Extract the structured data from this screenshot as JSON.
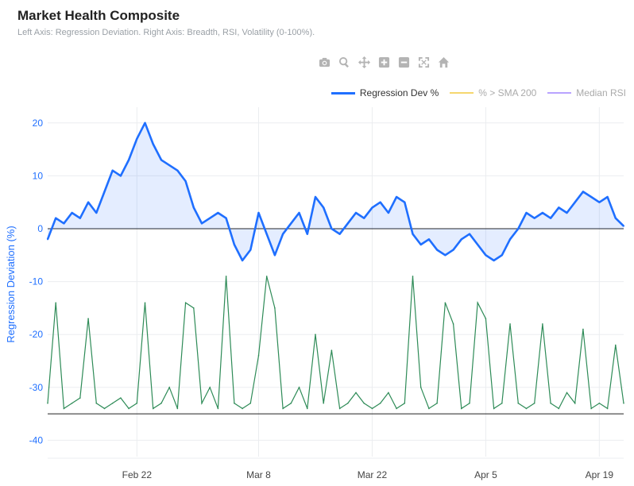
{
  "title": "Market Health Composite",
  "subtitle": "Left Axis: Regression Deviation. Right Axis: Breadth, RSI, Volatility (0-100%).",
  "modebar": {
    "icons": [
      "camera-icon",
      "zoom-icon",
      "pan-icon",
      "zoom-in-icon",
      "zoom-out-icon",
      "autoscale-icon",
      "reset-axes-icon"
    ]
  },
  "legend": [
    {
      "label": "Regression Dev %",
      "color": "#1f6fff",
      "active": true
    },
    {
      "label": "% > SMA 200",
      "color": "#f5d76e",
      "active": false
    },
    {
      "label": "Median RSI",
      "color": "#b9a3ff",
      "active": false
    }
  ],
  "chart_data": {
    "type": "line",
    "title": "Market Health Composite",
    "ylabel": "Regression Deviation (%)",
    "ylim": [
      -42,
      22
    ],
    "yticks": [
      -40,
      -30,
      -20,
      -10,
      0,
      10,
      20
    ],
    "xticks": [
      "Feb 22",
      "Mar 8",
      "Mar 22",
      "Apr 5",
      "Apr 19"
    ],
    "x_start": "2024-02-11",
    "x_end": "2024-04-22",
    "grid": true,
    "legend_position": "top-right",
    "series": [
      {
        "name": "Regression Dev %",
        "color": "#1f6fff",
        "fill": "rgba(31,111,255,0.12)",
        "points": [
          [
            "2024-02-11",
            -2
          ],
          [
            "2024-02-12",
            2
          ],
          [
            "2024-02-13",
            1
          ],
          [
            "2024-02-14",
            3
          ],
          [
            "2024-02-15",
            2
          ],
          [
            "2024-02-16",
            5
          ],
          [
            "2024-02-17",
            3
          ],
          [
            "2024-02-18",
            7
          ],
          [
            "2024-02-19",
            11
          ],
          [
            "2024-02-20",
            10
          ],
          [
            "2024-02-21",
            13
          ],
          [
            "2024-02-22",
            17
          ],
          [
            "2024-02-23",
            20
          ],
          [
            "2024-02-24",
            16
          ],
          [
            "2024-02-25",
            13
          ],
          [
            "2024-02-26",
            12
          ],
          [
            "2024-02-27",
            11
          ],
          [
            "2024-02-28",
            9
          ],
          [
            "2024-02-29",
            4
          ],
          [
            "2024-03-01",
            1
          ],
          [
            "2024-03-02",
            2
          ],
          [
            "2024-03-03",
            3
          ],
          [
            "2024-03-04",
            2
          ],
          [
            "2024-03-05",
            -3
          ],
          [
            "2024-03-06",
            -6
          ],
          [
            "2024-03-07",
            -4
          ],
          [
            "2024-03-08",
            3
          ],
          [
            "2024-03-09",
            -1
          ],
          [
            "2024-03-10",
            -5
          ],
          [
            "2024-03-11",
            -1
          ],
          [
            "2024-03-12",
            1
          ],
          [
            "2024-03-13",
            3
          ],
          [
            "2024-03-14",
            -1
          ],
          [
            "2024-03-15",
            6
          ],
          [
            "2024-03-16",
            4
          ],
          [
            "2024-03-17",
            0
          ],
          [
            "2024-03-18",
            -1
          ],
          [
            "2024-03-19",
            1
          ],
          [
            "2024-03-20",
            3
          ],
          [
            "2024-03-21",
            2
          ],
          [
            "2024-03-22",
            4
          ],
          [
            "2024-03-23",
            5
          ],
          [
            "2024-03-24",
            3
          ],
          [
            "2024-03-25",
            6
          ],
          [
            "2024-03-26",
            5
          ],
          [
            "2024-03-27",
            -1
          ],
          [
            "2024-03-28",
            -3
          ],
          [
            "2024-03-29",
            -2
          ],
          [
            "2024-03-30",
            -4
          ],
          [
            "2024-03-31",
            -5
          ],
          [
            "2024-04-01",
            -4
          ],
          [
            "2024-04-02",
            -2
          ],
          [
            "2024-04-03",
            -1
          ],
          [
            "2024-04-04",
            -3
          ],
          [
            "2024-04-05",
            -5
          ],
          [
            "2024-04-06",
            -6
          ],
          [
            "2024-04-07",
            -5
          ],
          [
            "2024-04-08",
            -2
          ],
          [
            "2024-04-09",
            0
          ],
          [
            "2024-04-10",
            3
          ],
          [
            "2024-04-11",
            2
          ],
          [
            "2024-04-12",
            3
          ],
          [
            "2024-04-13",
            2
          ],
          [
            "2024-04-14",
            4
          ],
          [
            "2024-04-15",
            3
          ],
          [
            "2024-04-16",
            5
          ],
          [
            "2024-04-17",
            7
          ],
          [
            "2024-04-18",
            6
          ],
          [
            "2024-04-19",
            5
          ],
          [
            "2024-04-20",
            6
          ],
          [
            "2024-04-21",
            2
          ],
          [
            "2024-04-22",
            0.5
          ]
        ]
      },
      {
        "name": "",
        "color": "#2e8b57",
        "baseline": -35,
        "points": [
          [
            "2024-02-11",
            -33
          ],
          [
            "2024-02-12",
            -14
          ],
          [
            "2024-02-13",
            -34
          ],
          [
            "2024-02-14",
            -33
          ],
          [
            "2024-02-15",
            -32
          ],
          [
            "2024-02-16",
            -17
          ],
          [
            "2024-02-17",
            -33
          ],
          [
            "2024-02-18",
            -34
          ],
          [
            "2024-02-19",
            -33
          ],
          [
            "2024-02-20",
            -32
          ],
          [
            "2024-02-21",
            -34
          ],
          [
            "2024-02-22",
            -33
          ],
          [
            "2024-02-23",
            -14
          ],
          [
            "2024-02-24",
            -34
          ],
          [
            "2024-02-25",
            -33
          ],
          [
            "2024-02-26",
            -30
          ],
          [
            "2024-02-27",
            -34
          ],
          [
            "2024-02-28",
            -14
          ],
          [
            "2024-02-29",
            -15
          ],
          [
            "2024-03-01",
            -33
          ],
          [
            "2024-03-02",
            -30
          ],
          [
            "2024-03-03",
            -34
          ],
          [
            "2024-03-04",
            -9
          ],
          [
            "2024-03-05",
            -33
          ],
          [
            "2024-03-06",
            -34
          ],
          [
            "2024-03-07",
            -33
          ],
          [
            "2024-03-08",
            -24
          ],
          [
            "2024-03-09",
            -9
          ],
          [
            "2024-03-10",
            -15
          ],
          [
            "2024-03-11",
            -34
          ],
          [
            "2024-03-12",
            -33
          ],
          [
            "2024-03-13",
            -30
          ],
          [
            "2024-03-14",
            -34
          ],
          [
            "2024-03-15",
            -20
          ],
          [
            "2024-03-16",
            -33
          ],
          [
            "2024-03-17",
            -23
          ],
          [
            "2024-03-18",
            -34
          ],
          [
            "2024-03-19",
            -33
          ],
          [
            "2024-03-20",
            -31
          ],
          [
            "2024-03-21",
            -33
          ],
          [
            "2024-03-22",
            -34
          ],
          [
            "2024-03-23",
            -33
          ],
          [
            "2024-03-24",
            -31
          ],
          [
            "2024-03-25",
            -34
          ],
          [
            "2024-03-26",
            -33
          ],
          [
            "2024-03-27",
            -9
          ],
          [
            "2024-03-28",
            -30
          ],
          [
            "2024-03-29",
            -34
          ],
          [
            "2024-03-30",
            -33
          ],
          [
            "2024-03-31",
            -14
          ],
          [
            "2024-04-01",
            -18
          ],
          [
            "2024-04-02",
            -34
          ],
          [
            "2024-04-03",
            -33
          ],
          [
            "2024-04-04",
            -14
          ],
          [
            "2024-04-05",
            -17
          ],
          [
            "2024-04-06",
            -34
          ],
          [
            "2024-04-07",
            -33
          ],
          [
            "2024-04-08",
            -18
          ],
          [
            "2024-04-09",
            -33
          ],
          [
            "2024-04-10",
            -34
          ],
          [
            "2024-04-11",
            -33
          ],
          [
            "2024-04-12",
            -18
          ],
          [
            "2024-04-13",
            -33
          ],
          [
            "2024-04-14",
            -34
          ],
          [
            "2024-04-15",
            -31
          ],
          [
            "2024-04-16",
            -33
          ],
          [
            "2024-04-17",
            -19
          ],
          [
            "2024-04-18",
            -34
          ],
          [
            "2024-04-19",
            -33
          ],
          [
            "2024-04-20",
            -34
          ],
          [
            "2024-04-21",
            -22
          ],
          [
            "2024-04-22",
            -33
          ]
        ]
      }
    ]
  }
}
